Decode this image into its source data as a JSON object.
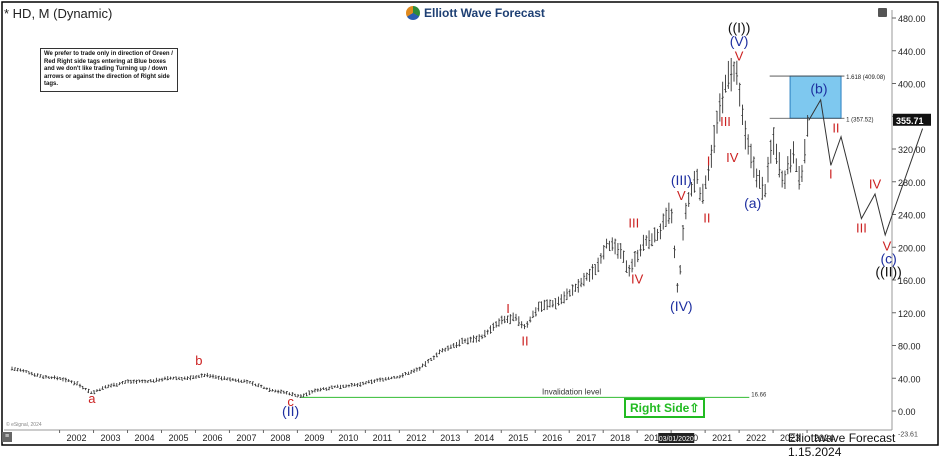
{
  "header": {
    "symbol_title": "* HD, M (Dynamic)",
    "logo_text": "Elliott Wave Forecast"
  },
  "note_text": "We prefer to trade only in direction of Green / Red Right side tags entering at Blue boxes and we don't like trading Turning up / down arrows or against the direction of Right side tags.",
  "right_side_label": "Right Side⇧",
  "footer": "Elliottwave Forecast 1.15.2024",
  "small_credit": "© eSignal, 2024",
  "corner_icon": "chart-icon",
  "colors": {
    "red": "#cc2222",
    "blue": "#1e2fa0",
    "black": "#111111",
    "green": "#22bb22",
    "box_fill": "#7ec8ef",
    "price_bar": "#333333"
  },
  "chart_data": {
    "type": "line",
    "ylim": [
      0,
      480
    ],
    "xlim": [
      2000.6,
      2026.5
    ],
    "y_ticks": [
      0,
      40,
      80,
      120,
      160,
      200,
      240,
      280,
      320,
      360,
      400,
      440,
      480
    ],
    "y_tick_labels": [
      "0.00",
      "40.00",
      "80.00",
      "120.00",
      "160.00",
      "200.00",
      "240.00",
      "280.00",
      "320.00",
      "360.00",
      "400.00",
      "440.00",
      "480.00"
    ],
    "y_min_label": "-23.61",
    "x_ticks": [
      2002,
      2003,
      2004,
      2005,
      2006,
      2007,
      2008,
      2009,
      2010,
      2011,
      2012,
      2013,
      2014,
      2015,
      2016,
      2017,
      2018,
      2019,
      2020,
      2021,
      2022,
      2023,
      2024
    ],
    "x_tick_labels": [
      "2002",
      "2003",
      "2004",
      "2005",
      "2006",
      "2007",
      "2008",
      "2009",
      "2010",
      "2011",
      "2012",
      "2013",
      "2014",
      "2015",
      "2016",
      "2017",
      "2018",
      "2019",
      "2020",
      "2021",
      "2022",
      "2023",
      "2024"
    ],
    "x_cursor_label": "03/01/2020",
    "x_cursor_value": 2020.15,
    "last_price": 355.71,
    "last_price_label": "355.71",
    "price_series": {
      "x": [
        2000.6,
        2001.0,
        2001.5,
        2002.0,
        2002.5,
        2002.95,
        2003.4,
        2004.0,
        2004.6,
        2005.2,
        2005.8,
        2006.3,
        2006.8,
        2007.5,
        2008.2,
        2008.7,
        2009.1,
        2009.6,
        2010.2,
        2010.8,
        2011.4,
        2012.0,
        2012.6,
        2013.2,
        2013.8,
        2014.4,
        2015.0,
        2015.4,
        2015.7,
        2016.1,
        2016.6,
        2017.2,
        2017.8,
        2018.1,
        2018.5,
        2018.75,
        2019.2,
        2019.6,
        2020.0,
        2020.2,
        2020.4,
        2020.75,
        2020.9,
        2021.3,
        2021.6,
        2021.9,
        2022.2,
        2022.5,
        2022.75,
        2023.0,
        2023.3,
        2023.6,
        2023.8,
        2024.05
      ],
      "y": [
        52,
        48,
        42,
        40,
        34,
        22,
        30,
        36,
        36,
        40,
        40,
        44,
        40,
        36,
        26,
        22,
        18,
        26,
        30,
        32,
        38,
        42,
        52,
        72,
        84,
        90,
        110,
        114,
        102,
        128,
        132,
        150,
        175,
        205,
        195,
        172,
        205,
        215,
        246,
        140,
        240,
        290,
        255,
        340,
        400,
        418,
        330,
        290,
        265,
        335,
        280,
        320,
        275,
        355
      ]
    },
    "projection_path": {
      "x": [
        2024.05,
        2024.4,
        2024.7,
        2025.0,
        2025.6,
        2026.0,
        2026.3,
        2027.4
      ],
      "y": [
        355,
        380,
        300,
        335,
        235,
        265,
        215,
        345
      ]
    },
    "fib_levels": [
      {
        "label": "1.618 (409.08)",
        "value": 409.08
      },
      {
        "label": "1 (357.52)",
        "value": 357.52
      }
    ],
    "blue_box": {
      "x_start": 2023.5,
      "x_end": 2025.0,
      "y_low": 357.52,
      "y_high": 409.08
    },
    "invalidation": {
      "label": "Invalidation level",
      "value_label": "16.66",
      "value": 16.66,
      "x_start": 2009.1,
      "x_end": 2022.3
    },
    "labels": [
      {
        "text": "a",
        "x": 2002.95,
        "y": 10,
        "color": "red"
      },
      {
        "text": "b",
        "x": 2006.1,
        "y": 56,
        "color": "red"
      },
      {
        "text": "c",
        "x": 2008.8,
        "y": 6,
        "color": "red"
      },
      {
        "text": "(II)",
        "x": 2008.8,
        "y": -6,
        "color": "blue"
      },
      {
        "text": "I",
        "x": 2015.2,
        "y": 120,
        "color": "red"
      },
      {
        "text": "II",
        "x": 2015.7,
        "y": 80,
        "color": "red"
      },
      {
        "text": "III",
        "x": 2018.9,
        "y": 224,
        "color": "red"
      },
      {
        "text": "IV",
        "x": 2019.0,
        "y": 156,
        "color": "red"
      },
      {
        "text": "(III)",
        "x": 2020.3,
        "y": 276,
        "color": "blue"
      },
      {
        "text": "V",
        "x": 2020.3,
        "y": 258,
        "color": "red"
      },
      {
        "text": "(IV)",
        "x": 2020.3,
        "y": 122,
        "color": "blue"
      },
      {
        "text": "I",
        "x": 2021.1,
        "y": 300,
        "color": "red"
      },
      {
        "text": "II",
        "x": 2021.05,
        "y": 230,
        "color": "red"
      },
      {
        "text": "III",
        "x": 2021.6,
        "y": 348,
        "color": "red"
      },
      {
        "text": "IV",
        "x": 2021.8,
        "y": 304,
        "color": "red"
      },
      {
        "text": "V",
        "x": 2022.0,
        "y": 428,
        "color": "red"
      },
      {
        "text": "(V)",
        "x": 2022.0,
        "y": 446,
        "color": "blue"
      },
      {
        "text": "((I))",
        "x": 2022.0,
        "y": 462,
        "color": "black"
      },
      {
        "text": "(a)",
        "x": 2022.4,
        "y": 248,
        "color": "blue"
      },
      {
        "text": "(b)",
        "x": 2024.35,
        "y": 388,
        "color": "blue"
      },
      {
        "text": "II",
        "x": 2024.85,
        "y": 340,
        "color": "red"
      },
      {
        "text": "I",
        "x": 2024.7,
        "y": 284,
        "color": "red"
      },
      {
        "text": "IV",
        "x": 2026.0,
        "y": 272,
        "color": "red"
      },
      {
        "text": "III",
        "x": 2025.6,
        "y": 218,
        "color": "red"
      },
      {
        "text": "V",
        "x": 2026.35,
        "y": 196,
        "color": "red"
      },
      {
        "text": "(c)",
        "x": 2026.4,
        "y": 180,
        "color": "blue"
      },
      {
        "text": "((II))",
        "x": 2026.4,
        "y": 164,
        "color": "black"
      }
    ]
  }
}
